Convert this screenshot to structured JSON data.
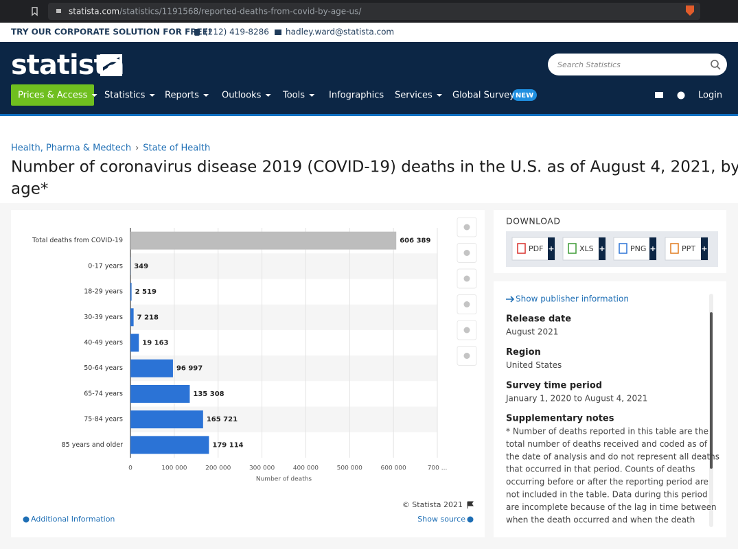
{
  "browser": {
    "url_domain": "statista.com",
    "url_path": "/statistics/1191568/reported-deaths-from-covid-by-age-us/"
  },
  "topbar": {
    "promo": "TRY OUR CORPORATE SOLUTION FOR FREE!",
    "phone": "(212) 419-8286",
    "email": "hadley.ward@statista.com"
  },
  "header": {
    "logo": "statista",
    "search_placeholder": "Search Statistics",
    "nav": [
      "Prices & Access",
      "Statistics",
      "Reports",
      "Outlooks",
      "Tools",
      "Infographics",
      "Services",
      "Global Survey"
    ],
    "badge": "NEW",
    "login": "Login"
  },
  "breadcrumb": [
    "Health, Pharma & Medtech",
    "›",
    "State of Health"
  ],
  "page_title": [
    "Number of coronavirus disease 2019 (COVID-19) deaths in the U.S. as of August 4, 2021, by",
    "age*"
  ],
  "chart_data": {
    "type": "bar",
    "orientation": "horizontal",
    "categories": [
      "Total deaths from COVID-19",
      "0-17 years",
      "18-29 years",
      "30-39 years",
      "40-49 years",
      "50-64 years",
      "65-74 years",
      "75-84 years",
      "85 years and older"
    ],
    "values": [
      606389,
      349,
      2519,
      7218,
      19163,
      96997,
      135308,
      165721,
      179114
    ],
    "value_labels": [
      "606 389",
      "349",
      "2 519",
      "7 218",
      "19 163",
      "96 997",
      "135 308",
      "165 721",
      "179 114"
    ],
    "colors": [
      "#bdbdbd",
      "#2b73d6",
      "#2b73d6",
      "#2b73d6",
      "#2b73d6",
      "#2b73d6",
      "#2b73d6",
      "#2b73d6",
      "#2b73d6"
    ],
    "xlim": [
      0,
      700000
    ],
    "xticks": [
      0,
      {
        "value": 100000,
        "label": "100 000"
      },
      {
        "value": 200000,
        "label": "200 000"
      },
      {
        "value": 300000,
        "label": "300 000"
      },
      {
        "value": 400000,
        "label": "400 000"
      },
      {
        "value": 500000,
        "label": "500 000"
      },
      {
        "value": 600000,
        "label": "600 000"
      },
      {
        "value": 700000,
        "label": "700 ..."
      }
    ],
    "xlabel": "Number of deaths",
    "grid": true
  },
  "chart_footer": {
    "copyright": "© Statista 2021",
    "show_source": "Show source",
    "additional": "Additional Information"
  },
  "download": {
    "title": "DOWNLOAD",
    "formats": [
      "PDF",
      "XLS",
      "PNG",
      "PPT"
    ],
    "plus": "+"
  },
  "info": {
    "publisher": "Show publisher information",
    "fields": [
      {
        "label": "Release date",
        "value": "August 2021"
      },
      {
        "label": "Region",
        "value": "United States"
      },
      {
        "label": "Survey time period",
        "value": "January 1, 2020 to August 4, 2021"
      }
    ],
    "notes_label": "Supplementary notes",
    "notes": [
      "* Number of deaths reported in this table are the",
      "total number of deaths received and coded as of",
      "the date of analysis and do not represent all deaths",
      "that occurred in that period. Counts of deaths",
      "occurring before or after the reporting period are",
      "not included in the table. Data during this period",
      "are incomplete because of the lag in time between",
      "when the death occurred and when the death"
    ]
  }
}
